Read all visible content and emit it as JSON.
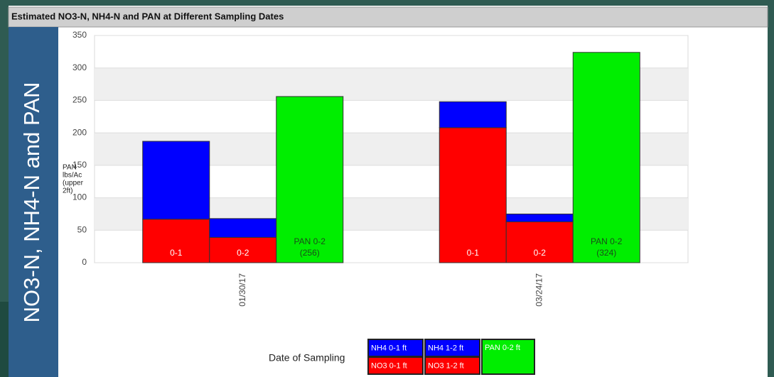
{
  "side_label": "NO3-N, NH4-N and PAN",
  "chart_data": {
    "type": "stacked_group_bar",
    "title": "Estimated NO3-N, NH4-N and PAN at Different Sampling Dates",
    "y_label": [
      "PAN",
      "lbs/Ac",
      "(upper",
      "2ft)"
    ],
    "x_label": "Date of Sampling",
    "categories": [
      "01/30/17",
      "03/24/17"
    ],
    "bars": [
      {
        "label": "0-1",
        "series": [
          {
            "name": "NO3 0-1 ft",
            "color": "#ff0000",
            "values": [
              67,
              208
            ]
          },
          {
            "name": "NH4 0-1 ft",
            "color": "#0000ff",
            "values": [
              120,
              40
            ]
          }
        ]
      },
      {
        "label": "0-2",
        "series": [
          {
            "name": "NO3 1-2 ft",
            "color": "#ff0000",
            "values": [
              39,
              63
            ]
          },
          {
            "name": "NH4 1-2 ft",
            "color": "#0000ff",
            "values": [
              29,
              12
            ]
          }
        ]
      },
      {
        "label": "PAN 0-2",
        "series": [
          {
            "name": "PAN 0-2 ft",
            "color": "#00ee00",
            "values": [
              256,
              324
            ],
            "value_labels": [
              "(256)",
              "(324)"
            ]
          }
        ]
      }
    ],
    "ylim": [
      0,
      350
    ],
    "yticks": [
      0,
      50,
      100,
      150,
      200,
      250,
      300,
      350
    ],
    "grid": true
  }
}
